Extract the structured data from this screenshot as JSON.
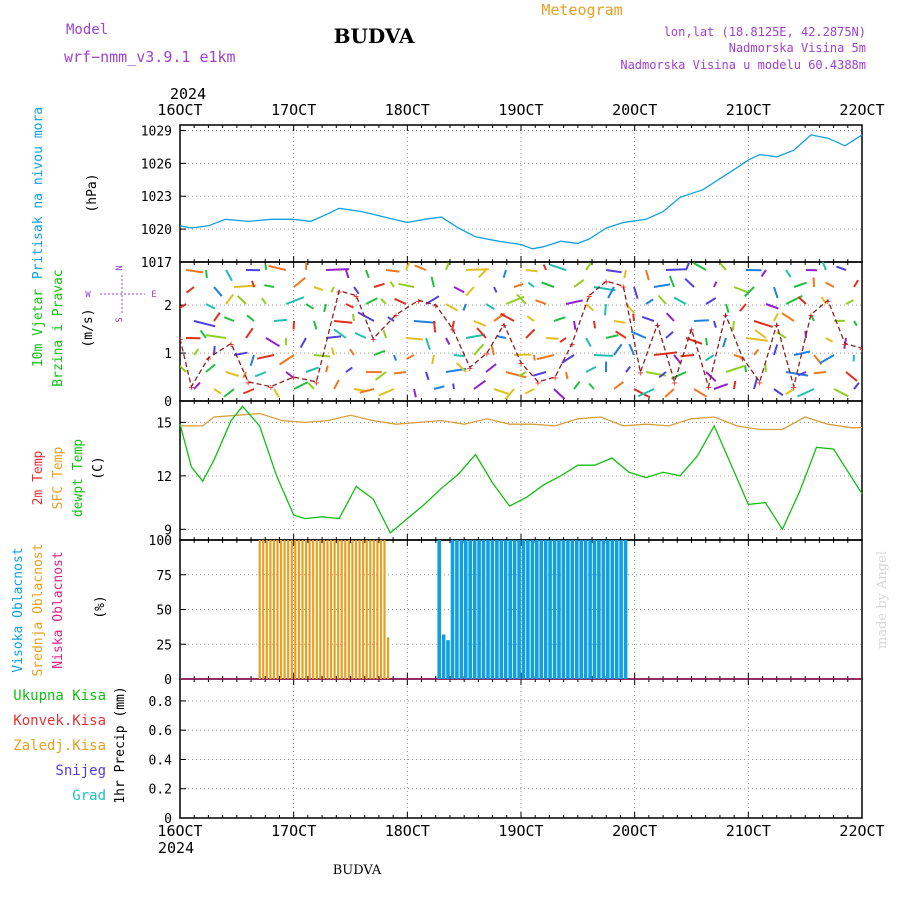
{
  "header": {
    "model_label": "Model",
    "model_name": "wrf−nmm_v3.9.1 e1km",
    "title": "BUDVA",
    "meteogram_label": "Meteogram",
    "lonlat": "lon,lat (18.8125E, 42.2875N)",
    "altitude": "Nadmorska Visina 5m",
    "model_altitude": "Nadmorska Visina u modelu 60.4388m",
    "footer_title": "BUDVA",
    "credit": "made by Angel"
  },
  "colors": {
    "purple": "#a040d0",
    "orange": "#e8a020",
    "blue": "#10a0e0",
    "green": "#10c010",
    "red": "#f03030",
    "pink": "#e0208a",
    "cyan": "#20c0c0",
    "violet": "#5040e0",
    "brown": "#8b2020",
    "tan": "#d4a040"
  },
  "chart_data": [
    {
      "type": "line",
      "title": "",
      "ylabel_left": "Pritisak na nivou mora",
      "ylabel_unit": "(hPa)",
      "x_top_year": "2024",
      "x_ticks": [
        "16OCT",
        "17OCT",
        "18OCT",
        "19OCT",
        "20OCT",
        "21OCT",
        "22OCT"
      ],
      "yticks": [
        1017,
        1020,
        1023,
        1026,
        1029
      ],
      "ylim": [
        1017,
        1029.5
      ],
      "series": [
        {
          "x": [
            16.0,
            16.1,
            16.25,
            16.4,
            16.6,
            16.8,
            17.0,
            17.15,
            17.3,
            17.4,
            17.6,
            17.8,
            18.0,
            18.15,
            18.3,
            18.45,
            18.6,
            18.8,
            19.0,
            19.1,
            19.2,
            19.35,
            19.5,
            19.6,
            19.75,
            19.9,
            20.1,
            20.25,
            20.4,
            20.6,
            20.75,
            20.9,
            21.0,
            21.1,
            21.25,
            21.4,
            21.55,
            21.7,
            21.85,
            22.0
          ],
          "values": [
            1020.3,
            1020.1,
            1020.3,
            1020.9,
            1020.7,
            1020.9,
            1020.9,
            1020.7,
            1021.4,
            1021.9,
            1021.6,
            1021.1,
            1020.6,
            1020.9,
            1021.1,
            1020.1,
            1019.3,
            1018.9,
            1018.6,
            1018.2,
            1018.4,
            1018.9,
            1018.7,
            1019.1,
            1020.1,
            1020.6,
            1020.9,
            1021.6,
            1022.9,
            1023.6,
            1024.6,
            1025.6,
            1026.3,
            1026.8,
            1026.6,
            1027.2,
            1028.6,
            1028.3,
            1027.6,
            1028.6
          ]
        }
      ]
    },
    {
      "type": "line",
      "title": "",
      "ylabel_left": [
        "10m Vjetar",
        "Brzina i Pravac"
      ],
      "ylabel_unit": "(m/s)",
      "compass": [
        "W",
        "E",
        "N",
        "S"
      ],
      "yticks": [
        0,
        1,
        2
      ],
      "ylim": [
        0,
        2.9
      ],
      "series": [
        {
          "name": "",
          "x": [
            16.0,
            16.1,
            16.25,
            16.45,
            16.6,
            16.8,
            17.0,
            17.2,
            17.4,
            17.55,
            17.7,
            17.9,
            18.1,
            18.25,
            18.4,
            18.55,
            18.7,
            18.85,
            19.0,
            19.15,
            19.3,
            19.45,
            19.6,
            19.75,
            19.9,
            20.05,
            20.2,
            20.35,
            20.5,
            20.65,
            20.8,
            20.95,
            21.1,
            21.25,
            21.4,
            21.55,
            21.7,
            21.85,
            22.0
          ],
          "values": [
            1.3,
            0.3,
            0.9,
            1.2,
            0.4,
            0.3,
            0.5,
            0.4,
            2.3,
            2.2,
            1.3,
            1.8,
            2.1,
            2.0,
            1.5,
            0.7,
            1.0,
            1.6,
            0.8,
            0.4,
            0.5,
            1.2,
            2.2,
            2.5,
            2.4,
            0.6,
            1.6,
            0.4,
            1.5,
            0.3,
            1.8,
            0.9,
            0.4,
            1.6,
            0.3,
            1.8,
            2.1,
            1.2,
            1.1
          ]
        }
      ]
    },
    {
      "type": "line",
      "title": "",
      "ylabel_left": [
        "2m Temp",
        "SFC Temp",
        "dewpt Temp"
      ],
      "ylabel_unit": "(C)",
      "yticks": [
        9,
        12,
        15
      ],
      "ylim": [
        8.4,
        16.2
      ],
      "series": [
        {
          "name": "SFC Temp",
          "x": [
            16.0,
            16.2,
            16.3,
            16.5,
            16.7,
            16.9,
            17.1,
            17.3,
            17.5,
            17.7,
            17.9,
            18.1,
            18.3,
            18.5,
            18.7,
            18.9,
            19.1,
            19.3,
            19.5,
            19.7,
            19.9,
            20.1,
            20.3,
            20.5,
            20.7,
            20.9,
            21.1,
            21.3,
            21.5,
            21.7,
            21.9,
            22.0
          ],
          "values": [
            14.8,
            14.8,
            15.3,
            15.4,
            15.5,
            15.1,
            15.0,
            15.1,
            15.4,
            15.1,
            14.9,
            15.0,
            15.1,
            14.9,
            15.2,
            14.9,
            14.9,
            14.8,
            15.2,
            15.3,
            14.8,
            14.9,
            14.8,
            15.2,
            15.3,
            14.8,
            14.6,
            14.6,
            15.3,
            14.9,
            14.7,
            14.7
          ]
        },
        {
          "name": "dewpt Temp",
          "x": [
            16.0,
            16.1,
            16.2,
            16.3,
            16.45,
            16.55,
            16.7,
            16.85,
            17.0,
            17.1,
            17.25,
            17.4,
            17.55,
            17.7,
            17.85,
            18.0,
            18.15,
            18.3,
            18.45,
            18.6,
            18.75,
            18.9,
            19.05,
            19.2,
            19.35,
            19.5,
            19.65,
            19.8,
            19.95,
            20.1,
            20.25,
            20.4,
            20.55,
            20.7,
            20.85,
            21.0,
            21.15,
            21.3,
            21.45,
            21.6,
            21.75,
            21.9,
            22.0
          ],
          "values": [
            14.9,
            12.5,
            11.7,
            12.9,
            15.1,
            15.9,
            14.8,
            12.0,
            9.8,
            9.6,
            9.7,
            9.6,
            11.4,
            10.7,
            8.8,
            9.6,
            10.4,
            11.3,
            12.1,
            13.2,
            11.6,
            10.3,
            10.8,
            11.5,
            12.0,
            12.6,
            12.6,
            13.0,
            12.2,
            11.9,
            12.2,
            12.0,
            13.1,
            14.8,
            12.6,
            10.4,
            10.5,
            9.0,
            11.1,
            13.6,
            13.5,
            12.0,
            11.0
          ]
        }
      ]
    },
    {
      "type": "bar",
      "title": "",
      "ylabel_left": [
        "Visoka Oblacnost",
        "Srednja Oblacnost",
        "Niska Oblacnost"
      ],
      "ylabel_unit": "(%)",
      "yticks": [
        0,
        25,
        50,
        75,
        100
      ],
      "ylim": [
        0,
        100
      ],
      "series": [
        {
          "name": "Srednja Oblacnost",
          "x_range": [
            16.7,
            17.83
          ],
          "values": [
            100
          ],
          "last_value": 30
        },
        {
          "name": "Visoka Oblacnost",
          "x_range": [
            18.28,
            19.92
          ],
          "values": [
            100
          ],
          "first_values": [
            32,
            28
          ]
        }
      ]
    },
    {
      "type": "bar",
      "title": "",
      "ylabel_left": [
        "Ukupna Kisa",
        "Konvek.Kisa",
        "Zaledj.Kisa",
        "Snijeg",
        "Grad"
      ],
      "ylabel_unit": "1hr Precip (mm)",
      "yticks": [
        0,
        0.2,
        0.4,
        0.6,
        0.8
      ],
      "ylim": [
        0,
        0.95
      ],
      "series": [
        {
          "name": "Ukupna Kisa",
          "values": [
            0
          ]
        }
      ],
      "x_bottom_year": "2024",
      "x_ticks": [
        "16OCT",
        "17OCT",
        "18OCT",
        "19OCT",
        "20OCT",
        "21OCT",
        "22OCT"
      ]
    }
  ]
}
